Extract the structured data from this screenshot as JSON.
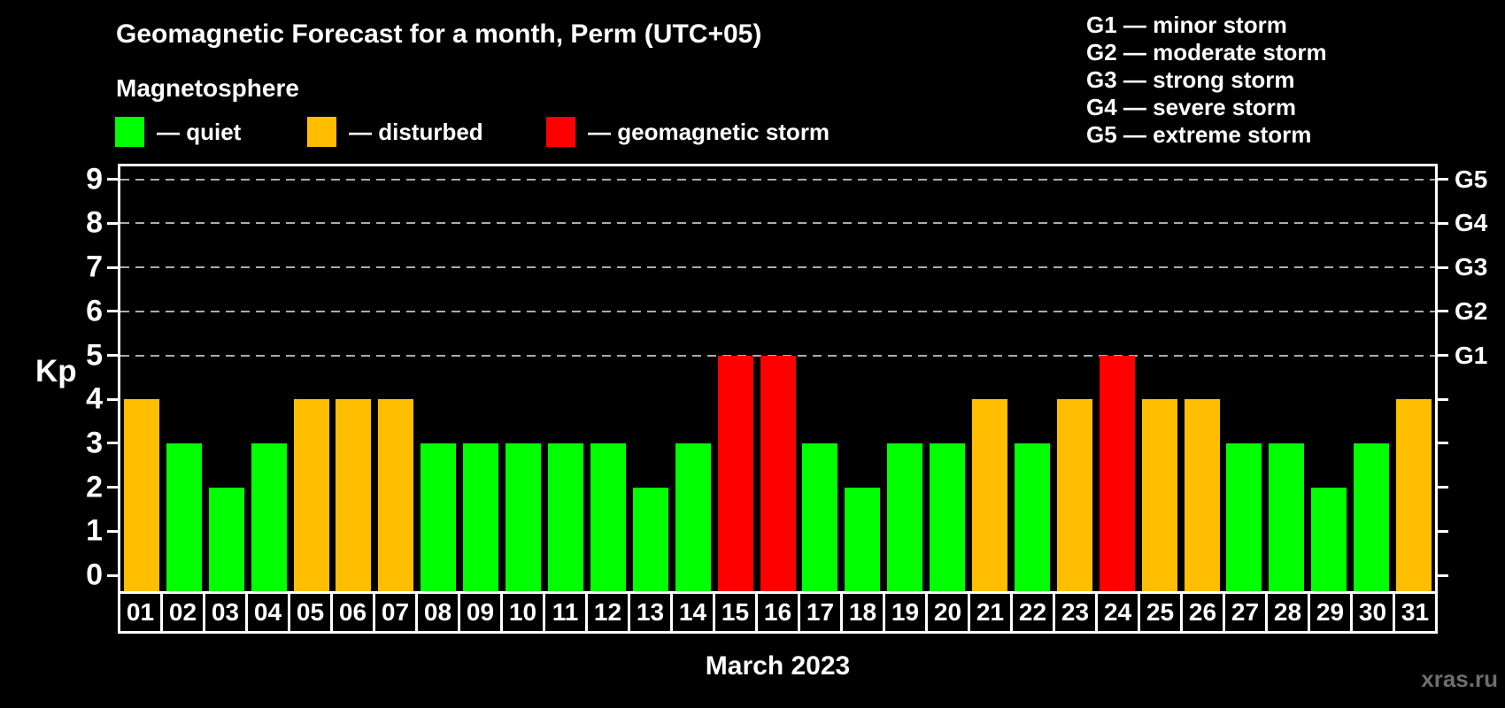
{
  "header": {
    "title": "Geomagnetic Forecast for a month, Perm (UTC+05)",
    "subtitle": "Magnetosphere",
    "legend": [
      {
        "name": "quiet",
        "label": "— quiet",
        "color": "#00ff00"
      },
      {
        "name": "disturbed",
        "label": "— disturbed",
        "color": "#ffbe00"
      },
      {
        "name": "storm",
        "label": "— geomagnetic storm",
        "color": "#ff0000"
      }
    ],
    "storm_scale": [
      {
        "code": "G1",
        "label": "G1 — minor storm"
      },
      {
        "code": "G2",
        "label": "G2 — moderate storm"
      },
      {
        "code": "G3",
        "label": "G3 — strong storm"
      },
      {
        "code": "G4",
        "label": "G4 — severe storm"
      },
      {
        "code": "G5",
        "label": "G5 — extreme storm"
      }
    ]
  },
  "chart_data": {
    "type": "bar",
    "title": "Geomagnetic Forecast for a month, Perm (UTC+05)",
    "xlabel": "March 2023",
    "ylabel": "Kp",
    "ylim": [
      0,
      9
    ],
    "grid": "dashed horizontal lines at Kp 5-9 only",
    "gridlines": [
      5,
      6,
      7,
      8,
      9
    ],
    "y_ticks": [
      0,
      1,
      2,
      3,
      4,
      5,
      6,
      7,
      8,
      9
    ],
    "right_axis_labels": [
      {
        "label": "G1",
        "kp": 5
      },
      {
        "label": "G2",
        "kp": 6
      },
      {
        "label": "G3",
        "kp": 7
      },
      {
        "label": "G4",
        "kp": 8
      },
      {
        "label": "G5",
        "kp": 9
      }
    ],
    "categories": [
      "01",
      "02",
      "03",
      "04",
      "05",
      "06",
      "07",
      "08",
      "09",
      "10",
      "11",
      "12",
      "13",
      "14",
      "15",
      "16",
      "17",
      "18",
      "19",
      "20",
      "21",
      "22",
      "23",
      "24",
      "25",
      "26",
      "27",
      "28",
      "29",
      "30",
      "31"
    ],
    "values": [
      4,
      3,
      2,
      3,
      4,
      4,
      4,
      3,
      3,
      3,
      3,
      3,
      2,
      3,
      5,
      5,
      3,
      2,
      3,
      3,
      4,
      3,
      4,
      5,
      4,
      4,
      3,
      3,
      2,
      3,
      4
    ],
    "statuses": [
      "disturbed",
      "quiet",
      "quiet",
      "quiet",
      "disturbed",
      "disturbed",
      "disturbed",
      "quiet",
      "quiet",
      "quiet",
      "quiet",
      "quiet",
      "quiet",
      "quiet",
      "storm",
      "storm",
      "quiet",
      "quiet",
      "quiet",
      "quiet",
      "disturbed",
      "quiet",
      "disturbed",
      "storm",
      "disturbed",
      "disturbed",
      "quiet",
      "quiet",
      "quiet",
      "quiet",
      "disturbed"
    ],
    "colors": {
      "quiet": "#00ff00",
      "disturbed": "#ffbe00",
      "storm": "#ff0000"
    },
    "legend_position": "top-left"
  },
  "footer": {
    "xlabel": "March 2023",
    "watermark": "xras.ru"
  }
}
